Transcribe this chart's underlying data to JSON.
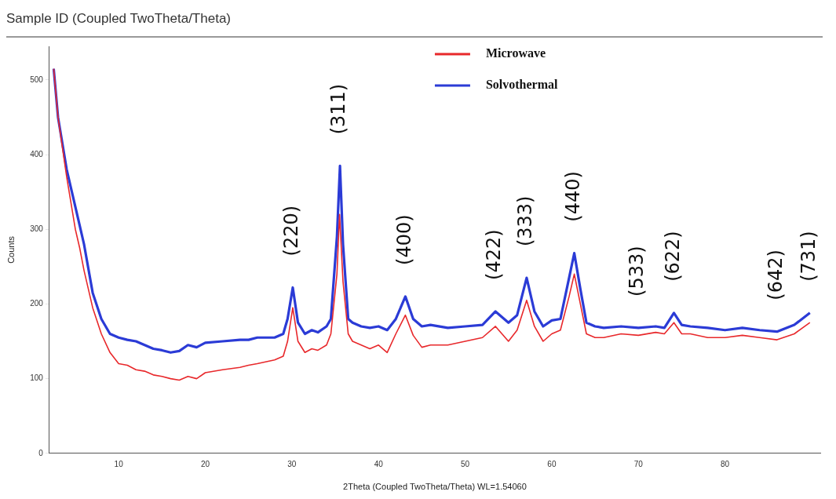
{
  "chart_data": {
    "type": "line",
    "title": "Sample ID (Coupled TwoTheta/Theta)",
    "xlabel": "2Theta (Coupled TwoTheta/Theta) WL=1.54060",
    "ylabel": "Counts",
    "xlim": [
      2,
      91
    ],
    "xticks": [
      10,
      20,
      30,
      40,
      50,
      60,
      70,
      80
    ],
    "ylim": [
      0,
      545
    ],
    "yticks": [
      0,
      100,
      200,
      300,
      400,
      500
    ],
    "grid": false,
    "legend": "top",
    "marker": "none",
    "line_style": "solid",
    "series": [
      {
        "name": "Microwave",
        "color": "#e8282b",
        "x": [
          2.5,
          3,
          4,
          5,
          5.5,
          6,
          7,
          8,
          9,
          10,
          11,
          12,
          13,
          14,
          15,
          16,
          17,
          18,
          19,
          20,
          22,
          24,
          25,
          26,
          28,
          29,
          29.5,
          30.1,
          30.7,
          31.5,
          32.3,
          33,
          34,
          34.5,
          35.2,
          35.5,
          35.9,
          36.5,
          37,
          38,
          39,
          40,
          41,
          42,
          43.1,
          44,
          45,
          46,
          48,
          50,
          52,
          53.5,
          55,
          56,
          57.1,
          58,
          59,
          60,
          61,
          62,
          62.6,
          63.3,
          64,
          65,
          66,
          68,
          70,
          72,
          73,
          74.1,
          75,
          76,
          78,
          80,
          82,
          84,
          86,
          88,
          89.8
        ],
        "values": [
          515,
          450,
          370,
          300,
          275,
          245,
          195,
          160,
          135,
          120,
          118,
          112,
          110,
          105,
          103,
          100,
          98,
          103,
          100,
          108,
          112,
          115,
          118,
          120,
          125,
          130,
          150,
          195,
          150,
          135,
          140,
          138,
          145,
          160,
          240,
          320,
          230,
          160,
          150,
          145,
          140,
          145,
          135,
          160,
          185,
          158,
          142,
          145,
          145,
          150,
          155,
          170,
          150,
          165,
          205,
          170,
          150,
          160,
          165,
          210,
          240,
          200,
          160,
          155,
          155,
          160,
          158,
          162,
          160,
          175,
          160,
          160,
          155,
          155,
          158,
          155,
          152,
          160,
          175
        ]
      },
      {
        "name": "Solvothermal",
        "color": "#2b3bd6",
        "x": [
          2.5,
          3,
          4,
          5,
          5.5,
          6,
          7,
          8,
          9,
          10,
          11,
          12,
          13,
          14,
          15,
          16,
          17,
          18,
          19,
          20,
          22,
          24,
          25,
          26,
          28,
          29,
          29.5,
          30.1,
          30.7,
          31.5,
          32.3,
          33,
          34,
          34.5,
          35.2,
          35.55,
          35.9,
          36.5,
          37,
          38,
          39,
          40,
          41,
          42,
          43.1,
          44,
          45,
          46,
          48,
          50,
          52,
          53.5,
          55,
          56,
          57.1,
          58,
          59,
          60,
          61,
          62,
          62.6,
          63.3,
          64,
          65,
          66,
          68,
          70,
          72,
          73,
          74.1,
          75,
          76,
          78,
          80,
          82,
          84,
          86,
          88,
          89.8
        ],
        "values": [
          515,
          450,
          380,
          330,
          305,
          280,
          215,
          180,
          160,
          155,
          152,
          150,
          145,
          140,
          138,
          135,
          137,
          145,
          142,
          148,
          150,
          152,
          152,
          155,
          155,
          160,
          180,
          222,
          175,
          160,
          165,
          162,
          170,
          180,
          290,
          385,
          280,
          180,
          175,
          170,
          168,
          170,
          165,
          180,
          210,
          180,
          170,
          172,
          168,
          170,
          172,
          190,
          175,
          185,
          235,
          190,
          170,
          178,
          180,
          235,
          268,
          220,
          175,
          170,
          168,
          170,
          168,
          170,
          168,
          188,
          172,
          170,
          168,
          165,
          168,
          165,
          163,
          172,
          188
        ]
      }
    ],
    "annotations": [
      {
        "text": "(220)",
        "x": 30.1,
        "y": 222
      },
      {
        "text": "(311)",
        "x": 35.55,
        "y": 385
      },
      {
        "text": "(400)",
        "x": 43.1,
        "y": 210
      },
      {
        "text": "(422)",
        "x": 53.5,
        "y": 190
      },
      {
        "text": "(333)",
        "x": 57.1,
        "y": 235
      },
      {
        "text": "(440)",
        "x": 62.6,
        "y": 268
      },
      {
        "text": "(533)",
        "x": 70,
        "y": 168
      },
      {
        "text": "(622)",
        "x": 74.1,
        "y": 188
      },
      {
        "text": "(642)",
        "x": 86,
        "y": 163
      },
      {
        "text": "(731)",
        "x": 89.8,
        "y": 188
      }
    ]
  }
}
